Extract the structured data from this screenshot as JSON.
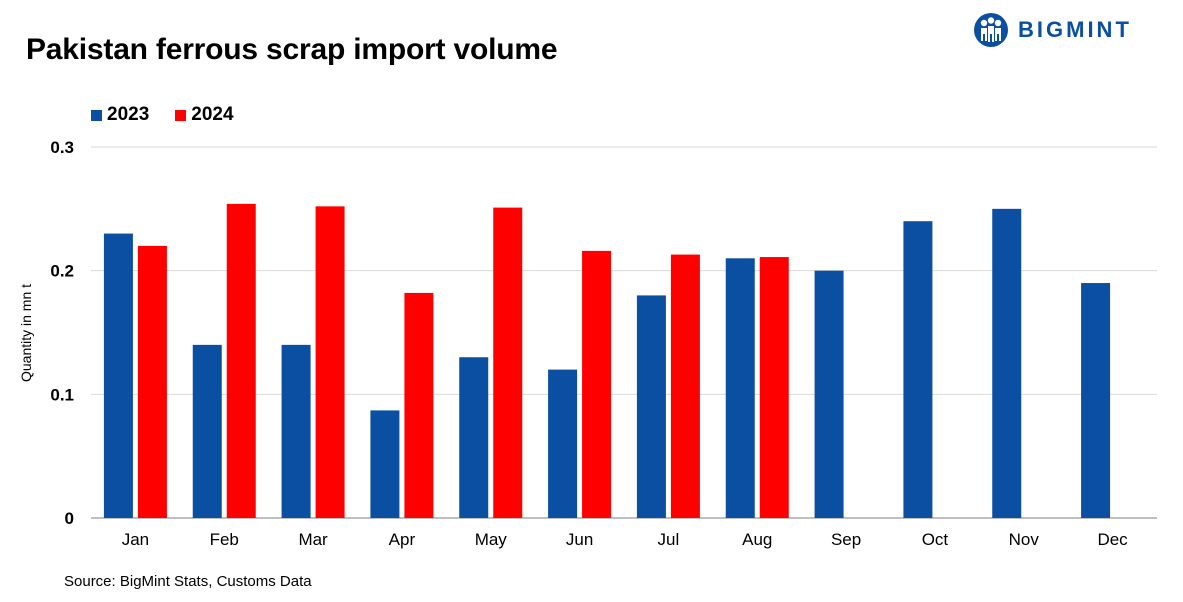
{
  "title": "Pakistan ferrous scrap import volume",
  "logo": {
    "text": "BIGMINT",
    "icon": "people-logo-icon",
    "color": "#0b4fa3"
  },
  "source": "Source: BigMint Stats, Customs Data",
  "chart_data": {
    "type": "bar",
    "title": "Pakistan ferrous scrap import volume",
    "xlabel": "",
    "ylabel": "Quantity in mn t",
    "ylim": [
      0,
      0.3
    ],
    "yticks": [
      "0",
      "0.1",
      "0.2",
      "0.3"
    ],
    "grid": true,
    "legend_position": "top-left",
    "categories": [
      "Jan",
      "Feb",
      "Mar",
      "Apr",
      "May",
      "Jun",
      "Jul",
      "Aug",
      "Sep",
      "Oct",
      "Nov",
      "Dec"
    ],
    "series": [
      {
        "name": "2023",
        "color": "#0b4fa3",
        "values": [
          0.23,
          0.14,
          0.14,
          0.087,
          0.13,
          0.12,
          0.18,
          0.21,
          0.2,
          0.24,
          0.25,
          0.19
        ]
      },
      {
        "name": "2024",
        "color": "#ff0000",
        "values": [
          0.22,
          0.254,
          0.252,
          0.182,
          0.251,
          0.216,
          0.213,
          0.211,
          null,
          null,
          null,
          null
        ]
      }
    ]
  }
}
